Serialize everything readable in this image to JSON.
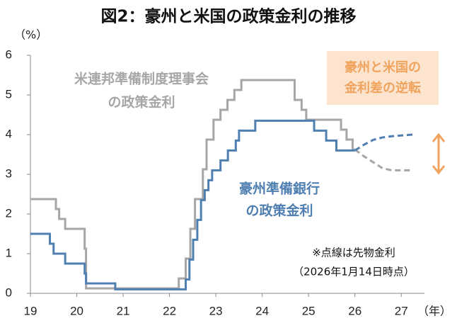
{
  "chart_data": {
    "type": "line",
    "title": "図2：豪州と米国の政策金利の推移",
    "y_unit": "（%）",
    "x_unit": "（年）",
    "xlim": [
      19,
      27.5
    ],
    "xticks": [
      19,
      20,
      21,
      22,
      23,
      24,
      25,
      26,
      27
    ],
    "ylim": [
      0,
      6
    ],
    "yticks": [
      0,
      1,
      2,
      3,
      4,
      5,
      6
    ],
    "callout": [
      "豪州と米国の",
      "金利差の逆転"
    ],
    "note": [
      "※点線は先物金利",
      "（2026年1月14日時点）"
    ],
    "series": [
      {
        "label_lines": [
          "米連邦準備制度理事会",
          "の政策金利"
        ],
        "color": "#a6a6a6",
        "dashed": false,
        "x": [
          19,
          19.55,
          19.55,
          19.62,
          19.62,
          19.75,
          19.75,
          20.17,
          20.17,
          20.2,
          20.2,
          22.2,
          22.2,
          22.35,
          22.35,
          22.45,
          22.45,
          22.55,
          22.55,
          22.72,
          22.72,
          22.8,
          22.8,
          22.95,
          22.95,
          23.1,
          23.1,
          23.25,
          23.25,
          23.4,
          23.4,
          23.55,
          23.55,
          24.7,
          24.7,
          24.85,
          24.85,
          24.95,
          24.95,
          25.7,
          25.7,
          25.82,
          25.82,
          25.95,
          25.95,
          26.0
        ],
        "values": [
          2.375,
          2.375,
          2.125,
          2.125,
          1.875,
          1.875,
          1.625,
          1.625,
          1.125,
          1.125,
          0.125,
          0.125,
          0.375,
          0.375,
          0.875,
          0.875,
          1.625,
          1.625,
          2.375,
          2.375,
          3.125,
          3.125,
          3.875,
          3.875,
          4.375,
          4.375,
          4.625,
          4.625,
          4.875,
          4.875,
          5.125,
          5.125,
          5.375,
          5.375,
          4.875,
          4.875,
          4.625,
          4.625,
          4.375,
          4.375,
          4.125,
          4.125,
          3.875,
          3.875,
          3.625,
          3.625
        ]
      },
      {
        "label_lines": [
          "豪州準備銀行",
          "の政策金利"
        ],
        "color": "#4f7fb0",
        "dashed": false,
        "x": [
          19,
          19.42,
          19.42,
          19.5,
          19.5,
          19.75,
          19.75,
          20.17,
          20.17,
          20.2,
          20.2,
          20.83,
          20.83,
          22.35,
          22.35,
          22.43,
          22.43,
          22.51,
          22.51,
          22.6,
          22.6,
          22.68,
          22.68,
          22.76,
          22.76,
          22.84,
          22.84,
          22.92,
          22.92,
          23.1,
          23.1,
          23.26,
          23.26,
          23.43,
          23.43,
          23.5,
          23.5,
          23.85,
          23.85,
          25.12,
          25.12,
          25.38,
          25.38,
          25.6,
          25.6,
          26.0
        ],
        "values": [
          1.5,
          1.5,
          1.25,
          1.25,
          1.0,
          1.0,
          0.75,
          0.75,
          0.5,
          0.5,
          0.25,
          0.25,
          0.1,
          0.1,
          0.35,
          0.35,
          0.85,
          0.85,
          1.35,
          1.35,
          1.85,
          1.85,
          2.35,
          2.35,
          2.6,
          2.6,
          2.85,
          2.85,
          3.1,
          3.1,
          3.35,
          3.35,
          3.6,
          3.6,
          3.85,
          3.85,
          4.1,
          4.1,
          4.35,
          4.35,
          4.1,
          4.1,
          3.85,
          3.85,
          3.6,
          3.6
        ]
      },
      {
        "color": "#a6a6a6",
        "dashed": true,
        "x": [
          26.0,
          26.2,
          26.4,
          26.6,
          26.8,
          27.25
        ],
        "values": [
          3.625,
          3.45,
          3.3,
          3.15,
          3.1,
          3.1
        ]
      },
      {
        "color": "#4f7fb0",
        "dashed": true,
        "x": [
          26.0,
          26.2,
          26.4,
          26.6,
          26.8,
          27.25
        ],
        "values": [
          3.6,
          3.75,
          3.87,
          3.93,
          3.96,
          4.0
        ]
      }
    ]
  }
}
